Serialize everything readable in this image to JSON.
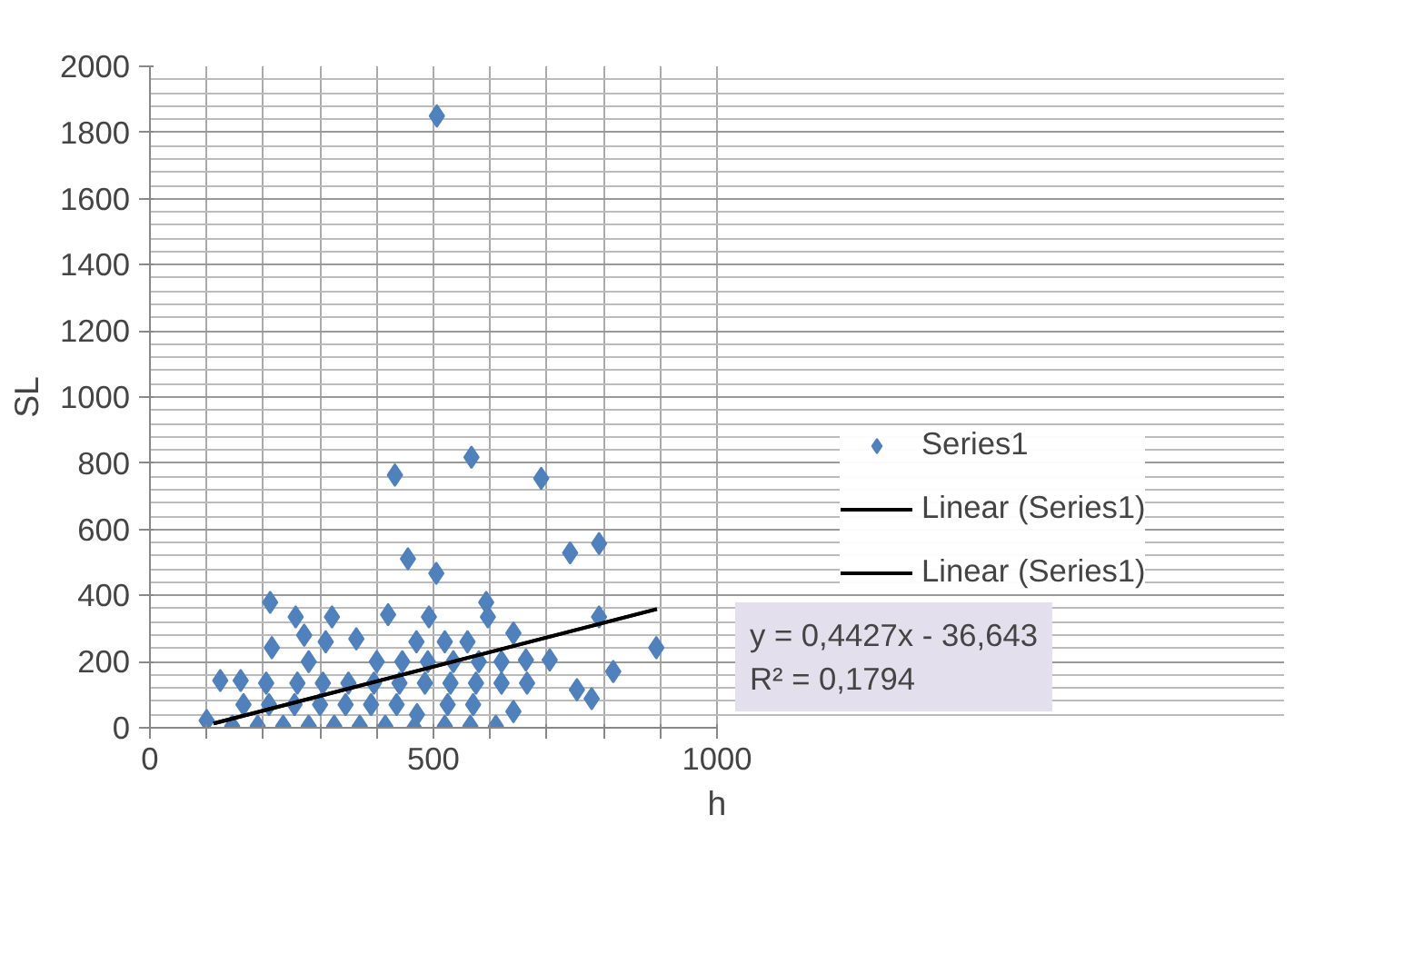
{
  "chart_data": {
    "type": "scatter",
    "xlabel": "h",
    "ylabel": "SL",
    "xlim": [
      0,
      1000
    ],
    "ylim": [
      0,
      2000
    ],
    "xticks": [
      0,
      {
        "value": 100,
        "label": null
      },
      {
        "value": 200,
        "label": null
      },
      {
        "value": 300,
        "label": null
      },
      {
        "value": 400,
        "label": null
      },
      500,
      {
        "value": 600,
        "label": null
      },
      {
        "value": 700,
        "label": null
      },
      {
        "value": 800,
        "label": null
      },
      {
        "value": 900,
        "label": null
      },
      1000
    ],
    "yticks": [
      0,
      200,
      400,
      600,
      800,
      1000,
      1200,
      1400,
      1600,
      1800,
      2000
    ],
    "grid": true,
    "legend": "right",
    "series": [
      {
        "name": "Series1",
        "color": "#4f81bd",
        "marker": "diamond",
        "x": [
          506,
          432,
          567,
          690,
          455,
          505,
          741,
          792,
          212,
          257,
          321,
          272,
          420,
          593,
          596,
          792,
          893,
          817,
          753,
          779,
          641,
          215,
          124,
          160,
          641,
          492,
          364,
          663,
          705,
          100,
          471,
          466,
          145,
          190,
          235,
          280,
          325,
          370,
          415,
          520,
          565,
          610,
          165,
          210,
          255,
          300,
          345,
          390,
          435,
          525,
          570,
          205,
          260,
          305,
          350,
          395,
          440,
          485,
          530,
          575,
          620,
          665,
          280,
          400,
          445,
          490,
          535,
          580,
          620,
          310,
          470,
          520,
          560
        ],
        "values": [
          1850,
          764,
          818,
          754,
          511,
          467,
          529,
          557,
          379,
          335,
          335,
          280,
          342,
          379,
          335,
          335,
          242,
          170,
          115,
          88,
          286,
          242,
          143,
          143,
          49,
          335,
          269,
          205,
          205,
          22,
          40,
          0,
          5,
          5,
          5,
          5,
          5,
          5,
          5,
          5,
          5,
          5,
          70,
          70,
          70,
          70,
          70,
          70,
          70,
          70,
          70,
          135,
          135,
          135,
          135,
          135,
          135,
          135,
          135,
          135,
          135,
          135,
          200,
          200,
          200,
          200,
          200,
          200,
          200,
          260,
          260,
          260,
          260
        ]
      },
      {
        "name": "Linear (Series1)",
        "color": "#000000",
        "type": "line",
        "marker": "none",
        "x": [
          112,
          894
        ],
        "values": [
          13,
          359
        ]
      },
      {
        "name": "Linear (Series1)",
        "color": "#000000",
        "type": "line",
        "marker": "none",
        "x": [
          112,
          894
        ],
        "values": [
          13,
          359
        ]
      }
    ],
    "annotations": [
      "y = 0,4427x - 36,643\nR² = 0,1794"
    ]
  }
}
